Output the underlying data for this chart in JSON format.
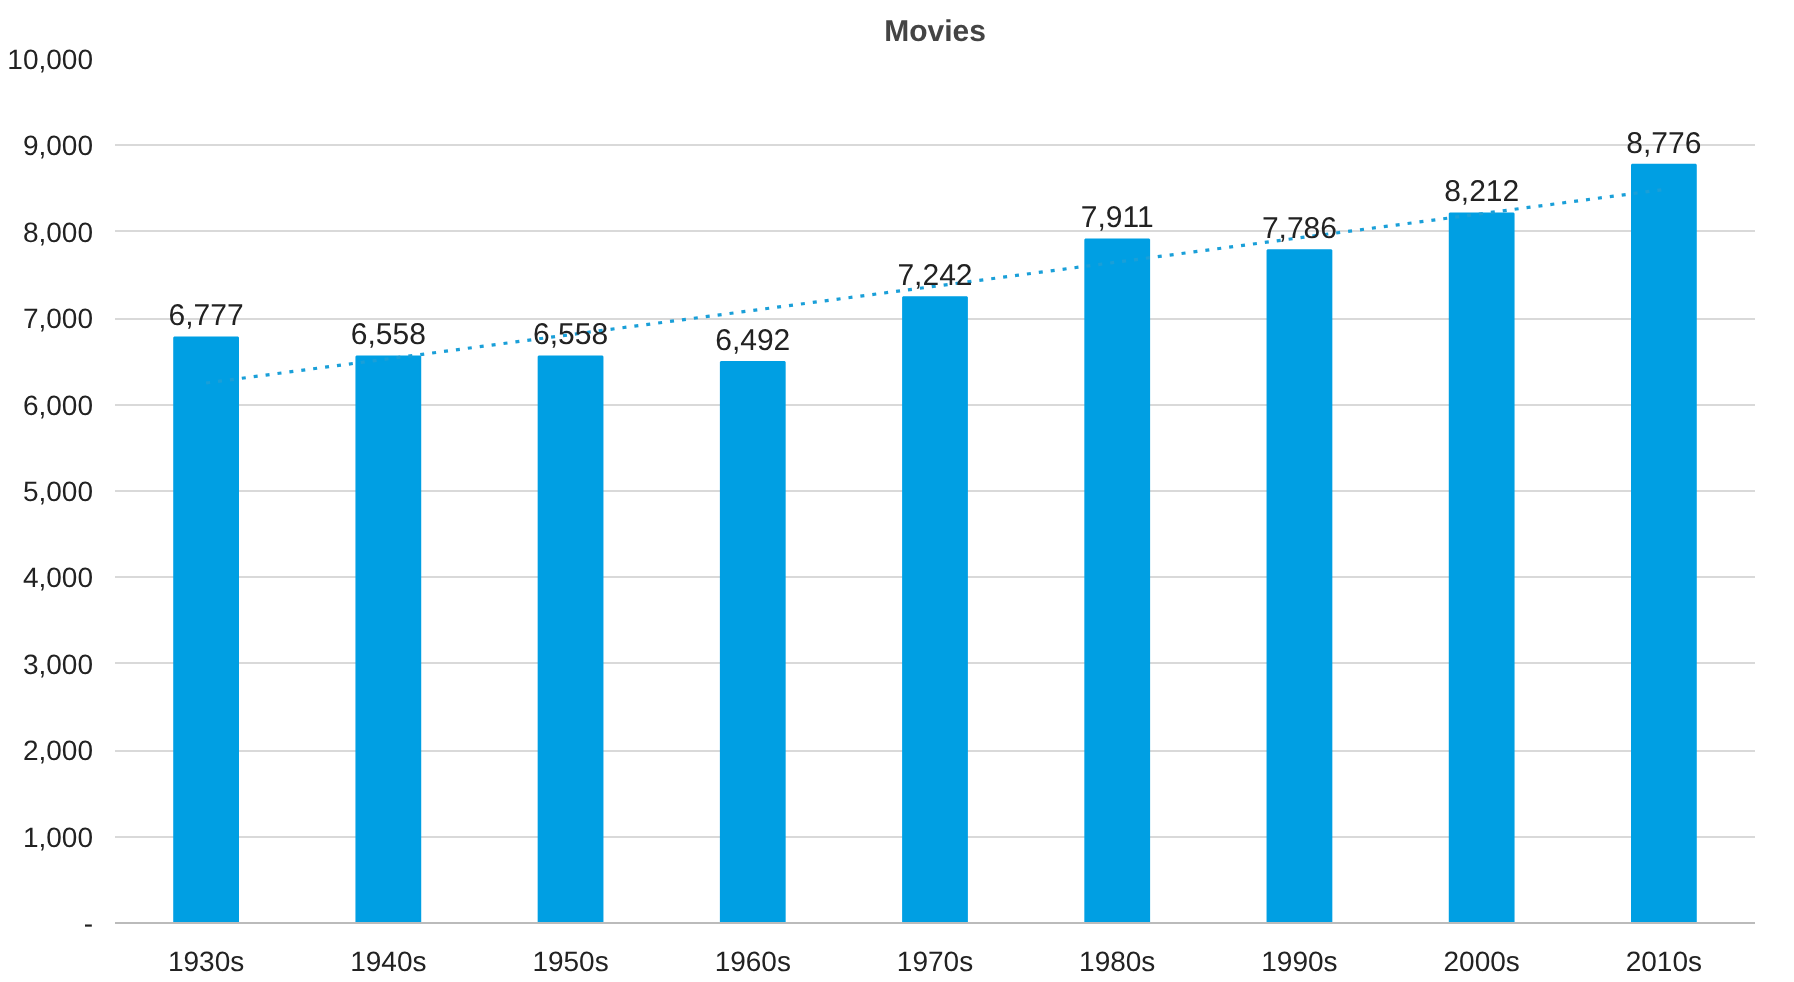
{
  "chart_data": {
    "type": "bar",
    "title": "Movies",
    "categories": [
      "1930s",
      "1940s",
      "1950s",
      "1960s",
      "1970s",
      "1980s",
      "1990s",
      "2000s",
      "2010s"
    ],
    "series": [
      {
        "color": "#009fe3",
        "values": [
          6777,
          6558,
          6558,
          6492,
          7242,
          7911,
          7786,
          8212,
          8776
        ],
        "value_labels": [
          "6,777",
          "6,558",
          "6,558",
          "6,492",
          "7,242",
          "7,911",
          "7,786",
          "8,212",
          "8,776"
        ]
      },
      {
        "type": "line",
        "color": "#1a9fd8",
        "line_style": "dotted",
        "marker": "none",
        "x": [
          "1930s",
          "2010s"
        ],
        "values": [
          6250,
          8490
        ]
      }
    ],
    "ylim": [
      0,
      10000
    ],
    "yticks": [
      {
        "value": 0,
        "label": "-"
      },
      {
        "value": 1000,
        "label": "1,000"
      },
      {
        "value": 2000,
        "label": "2,000"
      },
      {
        "value": 3000,
        "label": "3,000"
      },
      {
        "value": 4000,
        "label": "4,000"
      },
      {
        "value": 5000,
        "label": "5,000"
      },
      {
        "value": 6000,
        "label": "6,000"
      },
      {
        "value": 7000,
        "label": "7,000"
      },
      {
        "value": 8000,
        "label": "8,000"
      },
      {
        "value": 9000,
        "label": "9,000"
      },
      {
        "value": 10000,
        "label": "10,000"
      }
    ],
    "grid": "y"
  }
}
